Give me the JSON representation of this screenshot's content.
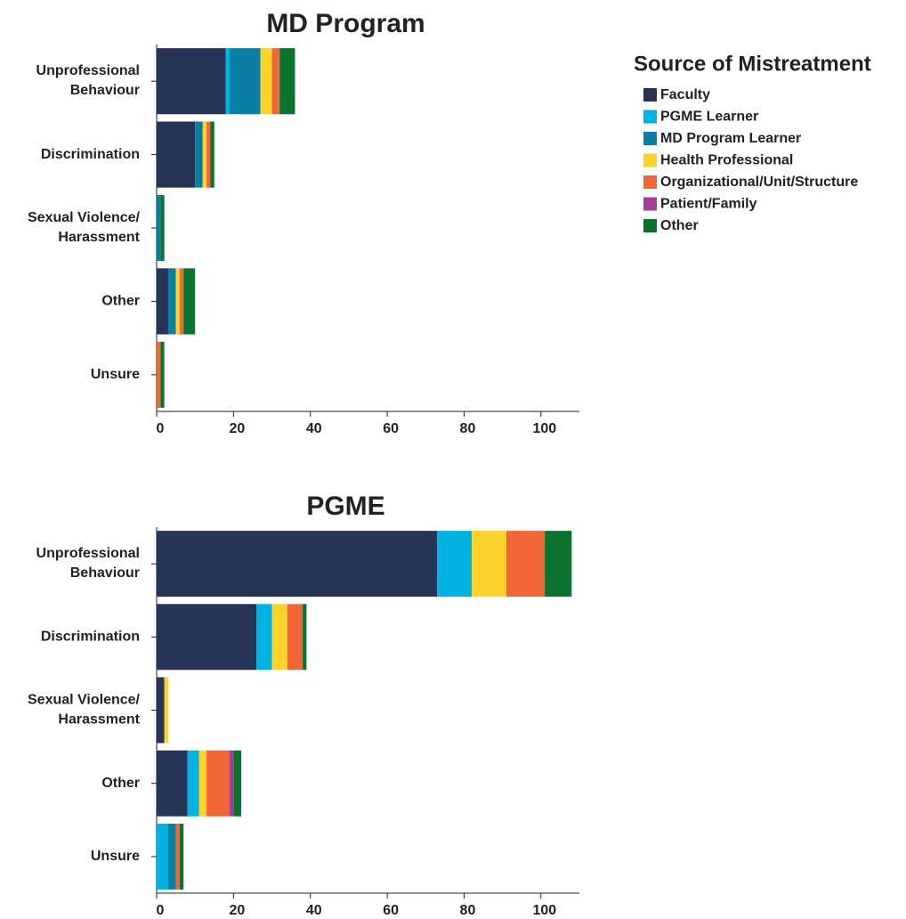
{
  "legend": {
    "title": "Source of Mistreatment",
    "position": "right"
  },
  "chart_data": [
    {
      "type": "stacked-barh",
      "title": "MD Program",
      "categories": [
        "Unprofessional\nBehaviour",
        "Discrimination",
        "Sexual Violence/\nHarassment",
        "Other",
        "Unsure"
      ],
      "series": [
        {
          "name": "Faculty",
          "color": "#253457",
          "values": [
            18,
            10,
            0,
            3,
            0
          ]
        },
        {
          "name": "PGME Learner",
          "color": "#00b2e3",
          "values": [
            1,
            0,
            0,
            0,
            0
          ]
        },
        {
          "name": "MD Program Learner",
          "color": "#0a7fa3",
          "values": [
            8,
            2,
            1,
            2,
            0
          ]
        },
        {
          "name": "Health Professional",
          "color": "#fdd22b",
          "values": [
            3,
            1,
            0,
            1,
            0
          ]
        },
        {
          "name": "Organizational/Unit/Structure",
          "color": "#f26535",
          "values": [
            2,
            1,
            0,
            1,
            1
          ]
        },
        {
          "name": "Patient/Family",
          "color": "#a43f98",
          "values": [
            0,
            0,
            0,
            0,
            0
          ]
        },
        {
          "name": "Other",
          "color": "#0c7230",
          "values": [
            4,
            1,
            1,
            3,
            1
          ]
        }
      ],
      "xlim": [
        0,
        110
      ],
      "xticks": [
        0,
        20,
        40,
        60,
        80,
        100
      ]
    },
    {
      "type": "stacked-barh",
      "title": "PGME",
      "categories": [
        "Unprofessional\nBehaviour",
        "Discrimination",
        "Sexual Violence/\nHarassment",
        "Other",
        "Unsure"
      ],
      "series": [
        {
          "name": "Faculty",
          "color": "#253457",
          "values": [
            73,
            26,
            2,
            8,
            0
          ]
        },
        {
          "name": "PGME Learner",
          "color": "#00b2e3",
          "values": [
            9,
            4,
            0,
            3,
            3
          ]
        },
        {
          "name": "MD Program Learner",
          "color": "#0a7fa3",
          "values": [
            0,
            0,
            0,
            0,
            2
          ]
        },
        {
          "name": "Health Professional",
          "color": "#fdd22b",
          "values": [
            9,
            4,
            1,
            2,
            0
          ]
        },
        {
          "name": "Organizational/Unit/Structure",
          "color": "#f26535",
          "values": [
            10,
            4,
            0,
            6,
            1
          ]
        },
        {
          "name": "Patient/Family",
          "color": "#a43f98",
          "values": [
            0,
            0,
            0,
            1,
            0
          ]
        },
        {
          "name": "Other",
          "color": "#0c7230",
          "values": [
            7,
            1,
            0,
            2,
            1
          ]
        }
      ],
      "xlim": [
        0,
        110
      ],
      "xticks": [
        0,
        20,
        40,
        60,
        80,
        100
      ]
    }
  ]
}
